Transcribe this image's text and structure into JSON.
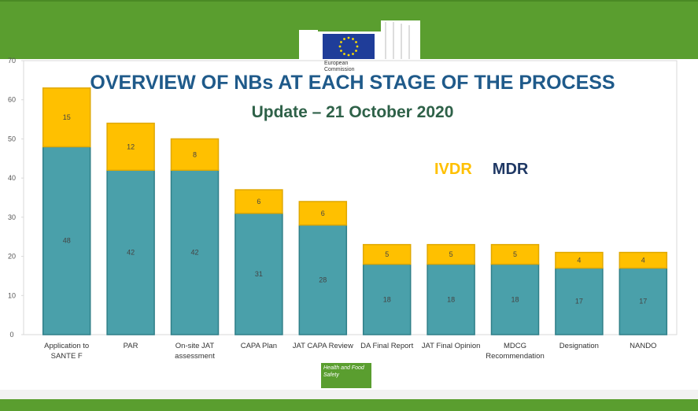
{
  "logo_text": "European Commission",
  "footer": "Health and Food Safety",
  "chart_data": {
    "type": "bar",
    "stacked": true,
    "title": "OVERVIEW OF NBs AT EACH STAGE OF THE PROCESS",
    "subtitle": "Update – 21 October 2020",
    "categories": [
      "Application to SANTE F",
      "PAR",
      "On-site JAT assessment",
      "CAPA Plan",
      "JAT CAPA Review",
      "DA Final Report",
      "JAT Final Opinion",
      "MDCG Recommendation",
      "Designation",
      "NANDO"
    ],
    "series": [
      {
        "name": "MDR",
        "color": "#4aa0aa",
        "label_color": "#1f3864",
        "values": [
          48,
          42,
          42,
          31,
          28,
          18,
          18,
          18,
          17,
          17
        ]
      },
      {
        "name": "IVDR",
        "color": "#ffc000",
        "label_color": "#ffc000",
        "values": [
          15,
          12,
          8,
          6,
          6,
          5,
          5,
          5,
          4,
          4
        ]
      }
    ],
    "ylim": [
      0,
      70
    ],
    "yticks": [
      0,
      10,
      20,
      30,
      40,
      50,
      60,
      70
    ]
  }
}
